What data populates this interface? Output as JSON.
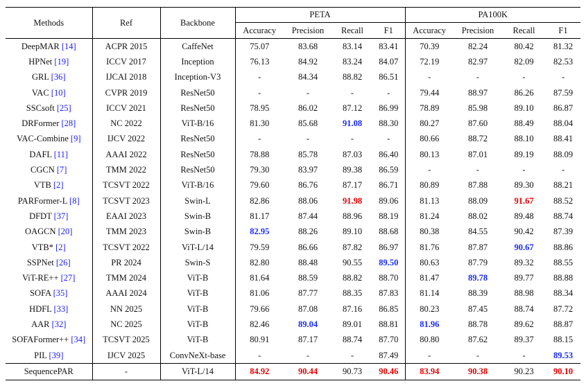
{
  "header": {
    "methods": "Methods",
    "ref": "Ref",
    "backbone": "Backbone",
    "peta": "PETA",
    "pa100k": "PA100K",
    "metrics": [
      "Accuracy",
      "Precision",
      "Recall",
      "F1",
      "Accuracy",
      "Precision",
      "Recall",
      "F1"
    ]
  },
  "rows": [
    {
      "method": "DeepMAR",
      "cite": "[14]",
      "ref": "ACPR 2015",
      "backbone": "CaffeNet",
      "values": [
        "75.07",
        "83.68",
        "83.14",
        "83.41",
        "70.39",
        "82.24",
        "80.42",
        "81.32"
      ],
      "hl": [
        "",
        "",
        "",
        "",
        "",
        "",
        "",
        ""
      ]
    },
    {
      "method": "HPNet",
      "cite": "[19]",
      "ref": "ICCV 2017",
      "backbone": "Inception",
      "values": [
        "76.13",
        "84.92",
        "83.24",
        "84.07",
        "72.19",
        "82.97",
        "82.09",
        "82.53"
      ],
      "hl": [
        "",
        "",
        "",
        "",
        "",
        "",
        "",
        ""
      ]
    },
    {
      "method": "GRL",
      "cite": "[36]",
      "ref": "IJCAI 2018",
      "backbone": "Inception-V3",
      "values": [
        "-",
        "84.34",
        "88.82",
        "86.51",
        "-",
        "-",
        "-",
        "-"
      ],
      "hl": [
        "",
        "",
        "",
        "",
        "",
        "",
        "",
        ""
      ]
    },
    {
      "method": "VAC",
      "cite": "[10]",
      "ref": "CVPR 2019",
      "backbone": "ResNet50",
      "values": [
        "-",
        "-",
        "-",
        "-",
        "79.44",
        "88.97",
        "86.26",
        "87.59"
      ],
      "hl": [
        "",
        "",
        "",
        "",
        "",
        "",
        "",
        ""
      ]
    },
    {
      "method": "SSCsoft",
      "cite": "[25]",
      "ref": "ICCV 2021",
      "backbone": "ResNet50",
      "values": [
        "78.95",
        "86.02",
        "87.12",
        "86.99",
        "78.89",
        "85.98",
        "89.10",
        "86.87"
      ],
      "hl": [
        "",
        "",
        "",
        "",
        "",
        "",
        "",
        ""
      ]
    },
    {
      "method": "DRFormer",
      "cite": "[28]",
      "ref": "NC 2022",
      "backbone": "ViT-B/16",
      "values": [
        "81.30",
        "85.68",
        "91.08",
        "88.30",
        "80.27",
        "87.60",
        "88.49",
        "88.04"
      ],
      "hl": [
        "",
        "",
        "blue",
        "",
        "",
        "",
        "",
        ""
      ]
    },
    {
      "method": "VAC-Combine",
      "cite": "[9]",
      "ref": "IJCV 2022",
      "backbone": "ResNet50",
      "values": [
        "-",
        "-",
        "-",
        "-",
        "80.66",
        "88.72",
        "88.10",
        "88.41"
      ],
      "hl": [
        "",
        "",
        "",
        "",
        "",
        "",
        "",
        ""
      ]
    },
    {
      "method": "DAFL",
      "cite": "[11]",
      "ref": "AAAI 2022",
      "backbone": "ResNet50",
      "values": [
        "78.88",
        "85.78",
        "87.03",
        "86.40",
        "80.13",
        "87.01",
        "89.19",
        "88.09"
      ],
      "hl": [
        "",
        "",
        "",
        "",
        "",
        "",
        "",
        ""
      ]
    },
    {
      "method": "CGCN",
      "cite": "[7]",
      "ref": "TMM 2022",
      "backbone": "ResNet50",
      "values": [
        "79.30",
        "83.97",
        "89.38",
        "86.59",
        "-",
        "-",
        "-",
        "-"
      ],
      "hl": [
        "",
        "",
        "",
        "",
        "",
        "",
        "",
        ""
      ]
    },
    {
      "method": "VTB",
      "cite": "[2]",
      "ref": "TCSVT 2022",
      "backbone": "ViT-B/16",
      "values": [
        "79.60",
        "86.76",
        "87.17",
        "86.71",
        "80.89",
        "87.88",
        "89.30",
        "88.21"
      ],
      "hl": [
        "",
        "",
        "",
        "",
        "",
        "",
        "",
        ""
      ]
    },
    {
      "method": "PARFormer-L",
      "cite": "[8]",
      "ref": "TCSVT 2023",
      "backbone": "Swin-L",
      "values": [
        "82.86",
        "88.06",
        "91.98",
        "89.06",
        "81.13",
        "88.09",
        "91.67",
        "88.52"
      ],
      "hl": [
        "",
        "",
        "red",
        "",
        "",
        "",
        "red",
        ""
      ]
    },
    {
      "method": "DFDT",
      "cite": "[37]",
      "ref": "EAAI 2023",
      "backbone": "Swin-B",
      "values": [
        "81.17",
        "87.44",
        "88.96",
        "88.19",
        "81.24",
        "88.02",
        "89.48",
        "88.74"
      ],
      "hl": [
        "",
        "",
        "",
        "",
        "",
        "",
        "",
        ""
      ]
    },
    {
      "method": "OAGCN",
      "cite": "[20]",
      "ref": "TMM 2023",
      "backbone": "Swin-B",
      "values": [
        "82.95",
        "88.26",
        "89.10",
        "88.68",
        "80.38",
        "84.55",
        "90.42",
        "87.39"
      ],
      "hl": [
        "blue",
        "",
        "",
        "",
        "",
        "",
        "",
        ""
      ]
    },
    {
      "method": "VTB*",
      "cite": "[2]",
      "ref": "TCSVT 2022",
      "backbone": "ViT-L/14",
      "values": [
        "79.59",
        "86.66",
        "87.82",
        "86.97",
        "81.76",
        "87.87",
        "90.67",
        "88.86"
      ],
      "hl": [
        "",
        "",
        "",
        "",
        "",
        "",
        "blue",
        ""
      ]
    },
    {
      "method": "SSPNet",
      "cite": "[26]",
      "ref": "PR 2024",
      "backbone": "Swin-S",
      "values": [
        "82.80",
        "88.48",
        "90.55",
        "89.50",
        "80.63",
        "87.79",
        "89.32",
        "88.55"
      ],
      "hl": [
        "",
        "",
        "",
        "blue",
        "",
        "",
        "",
        ""
      ]
    },
    {
      "method": "ViT-RE++",
      "cite": "[27]",
      "ref": "TMM 2024",
      "backbone": "ViT-B",
      "values": [
        "81.64",
        "88.59",
        "88.82",
        "88.70",
        "81.47",
        "89.78",
        "89.77",
        "88.88"
      ],
      "hl": [
        "",
        "",
        "",
        "",
        "",
        "blue",
        "",
        ""
      ]
    },
    {
      "method": "SOFA",
      "cite": "[35]",
      "ref": "AAAI 2024",
      "backbone": "ViT-B",
      "values": [
        "81.06",
        "87.77",
        "88.35",
        "87.83",
        "81.14",
        "88.39",
        "88.98",
        "88.34"
      ],
      "hl": [
        "",
        "",
        "",
        "",
        "",
        "",
        "",
        ""
      ]
    },
    {
      "method": "HDFL",
      "cite": "[33]",
      "ref": "NN 2025",
      "backbone": "ViT-B",
      "values": [
        "79.66",
        "87.08",
        "87.16",
        "86.85",
        "80.23",
        "87.45",
        "88.74",
        "87.72"
      ],
      "hl": [
        "",
        "",
        "",
        "",
        "",
        "",
        "",
        ""
      ]
    },
    {
      "method": "AAR",
      "cite": "[32]",
      "ref": "NC 2025",
      "backbone": "ViT-B",
      "values": [
        "82.46",
        "89.04",
        "89.01",
        "88.81",
        "81.96",
        "88.78",
        "89.62",
        "88.87"
      ],
      "hl": [
        "",
        "blue",
        "",
        "",
        "blue",
        "",
        "",
        ""
      ]
    },
    {
      "method": "SOFAFormer++",
      "cite": "[34]",
      "ref": "TCSVT 2025",
      "backbone": "ViT-B",
      "values": [
        "80.91",
        "87.17",
        "88.74",
        "87.70",
        "80.80",
        "87.62",
        "89.37",
        "88.15"
      ],
      "hl": [
        "",
        "",
        "",
        "",
        "",
        "",
        "",
        ""
      ]
    },
    {
      "method": "PIL",
      "cite": "[39]",
      "ref": "IJCV 2025",
      "backbone": "ConvNeXt-base",
      "values": [
        "-",
        "-",
        "-",
        "87.49",
        "-",
        "-",
        "-",
        "89.53"
      ],
      "hl": [
        "",
        "",
        "",
        "",
        "",
        "",
        "",
        "blue"
      ]
    }
  ],
  "final": {
    "method": "SequencePAR",
    "ref": "-",
    "backbone": "ViT-L/14",
    "values": [
      "84.92",
      "90.44",
      "90.73",
      "90.46",
      "83.94",
      "90.38",
      "90.23",
      "90.10"
    ],
    "hl": [
      "red",
      "red",
      "",
      "red",
      "red",
      "red",
      "",
      "red"
    ]
  },
  "colors": {
    "red_highlight": "#e60000",
    "blue_highlight": "#1a2cff",
    "citation": "#1a1aff"
  }
}
